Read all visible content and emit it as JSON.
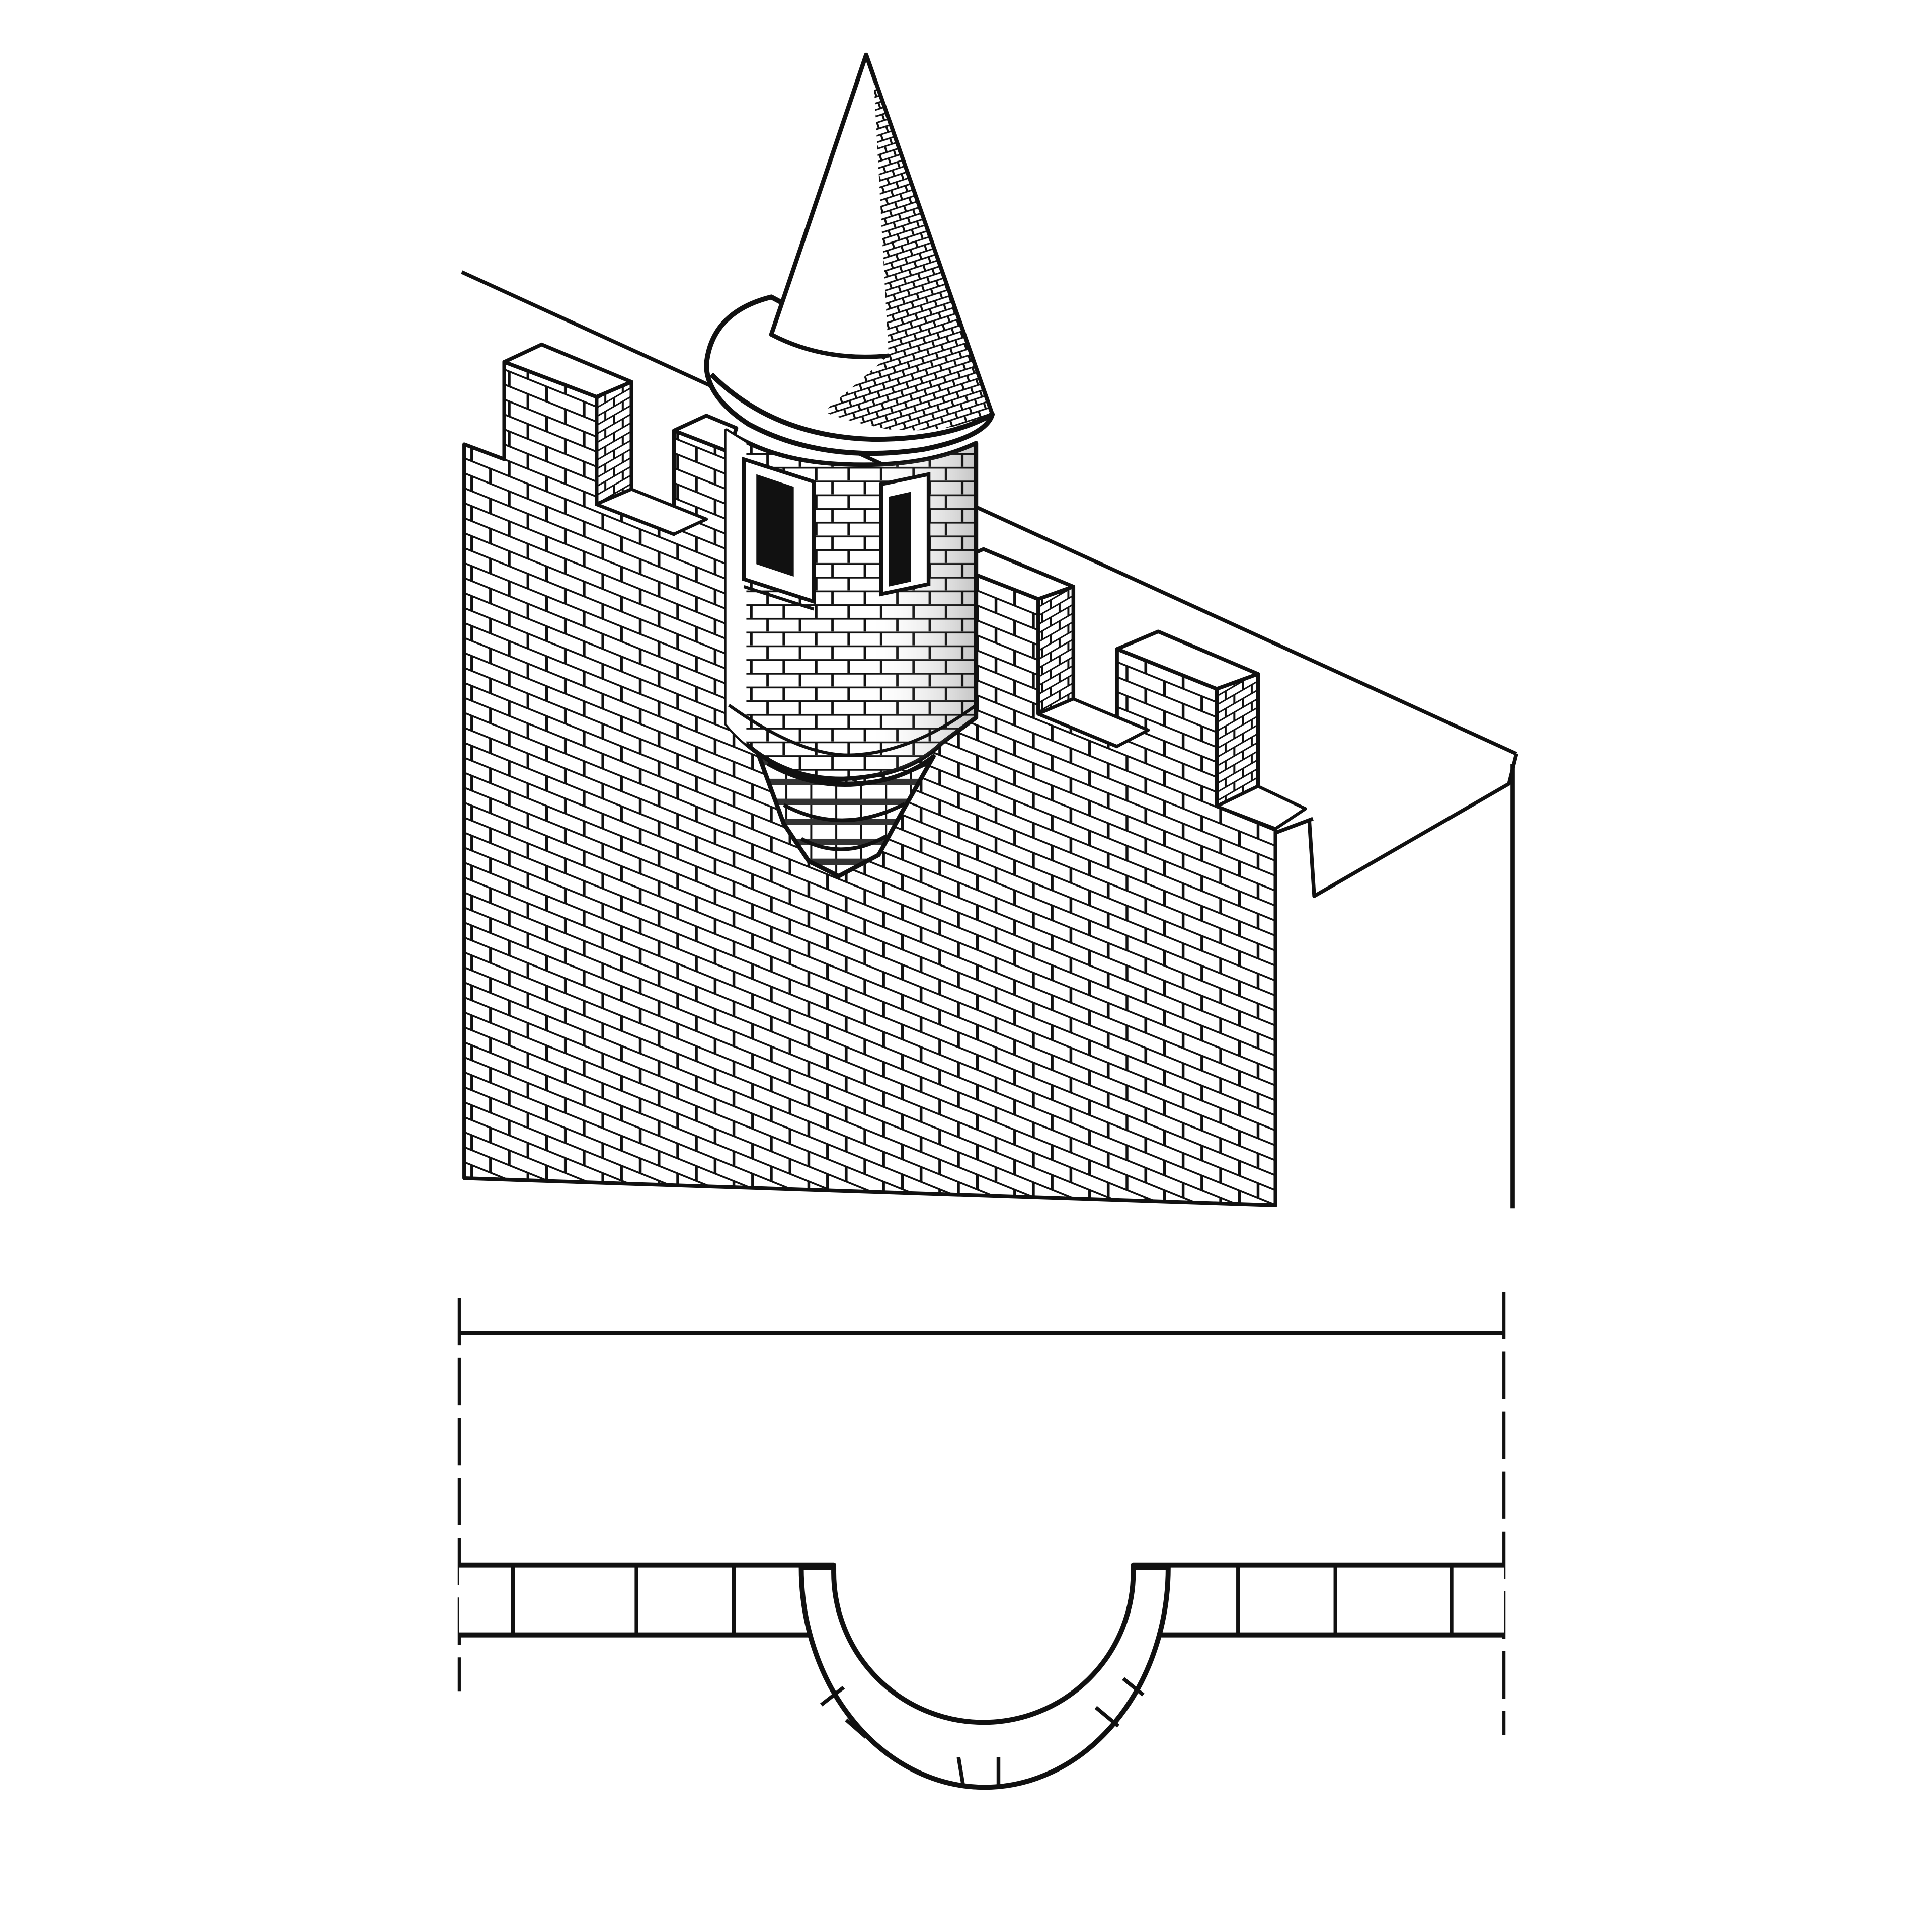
{
  "figure": {
    "subject": "",
    "views": [],
    "colors": {
      "ink": "#111111",
      "paper": "#ffffff",
      "roof_shade": "#2a2a2a",
      "corbel_shade": "#555555"
    }
  }
}
